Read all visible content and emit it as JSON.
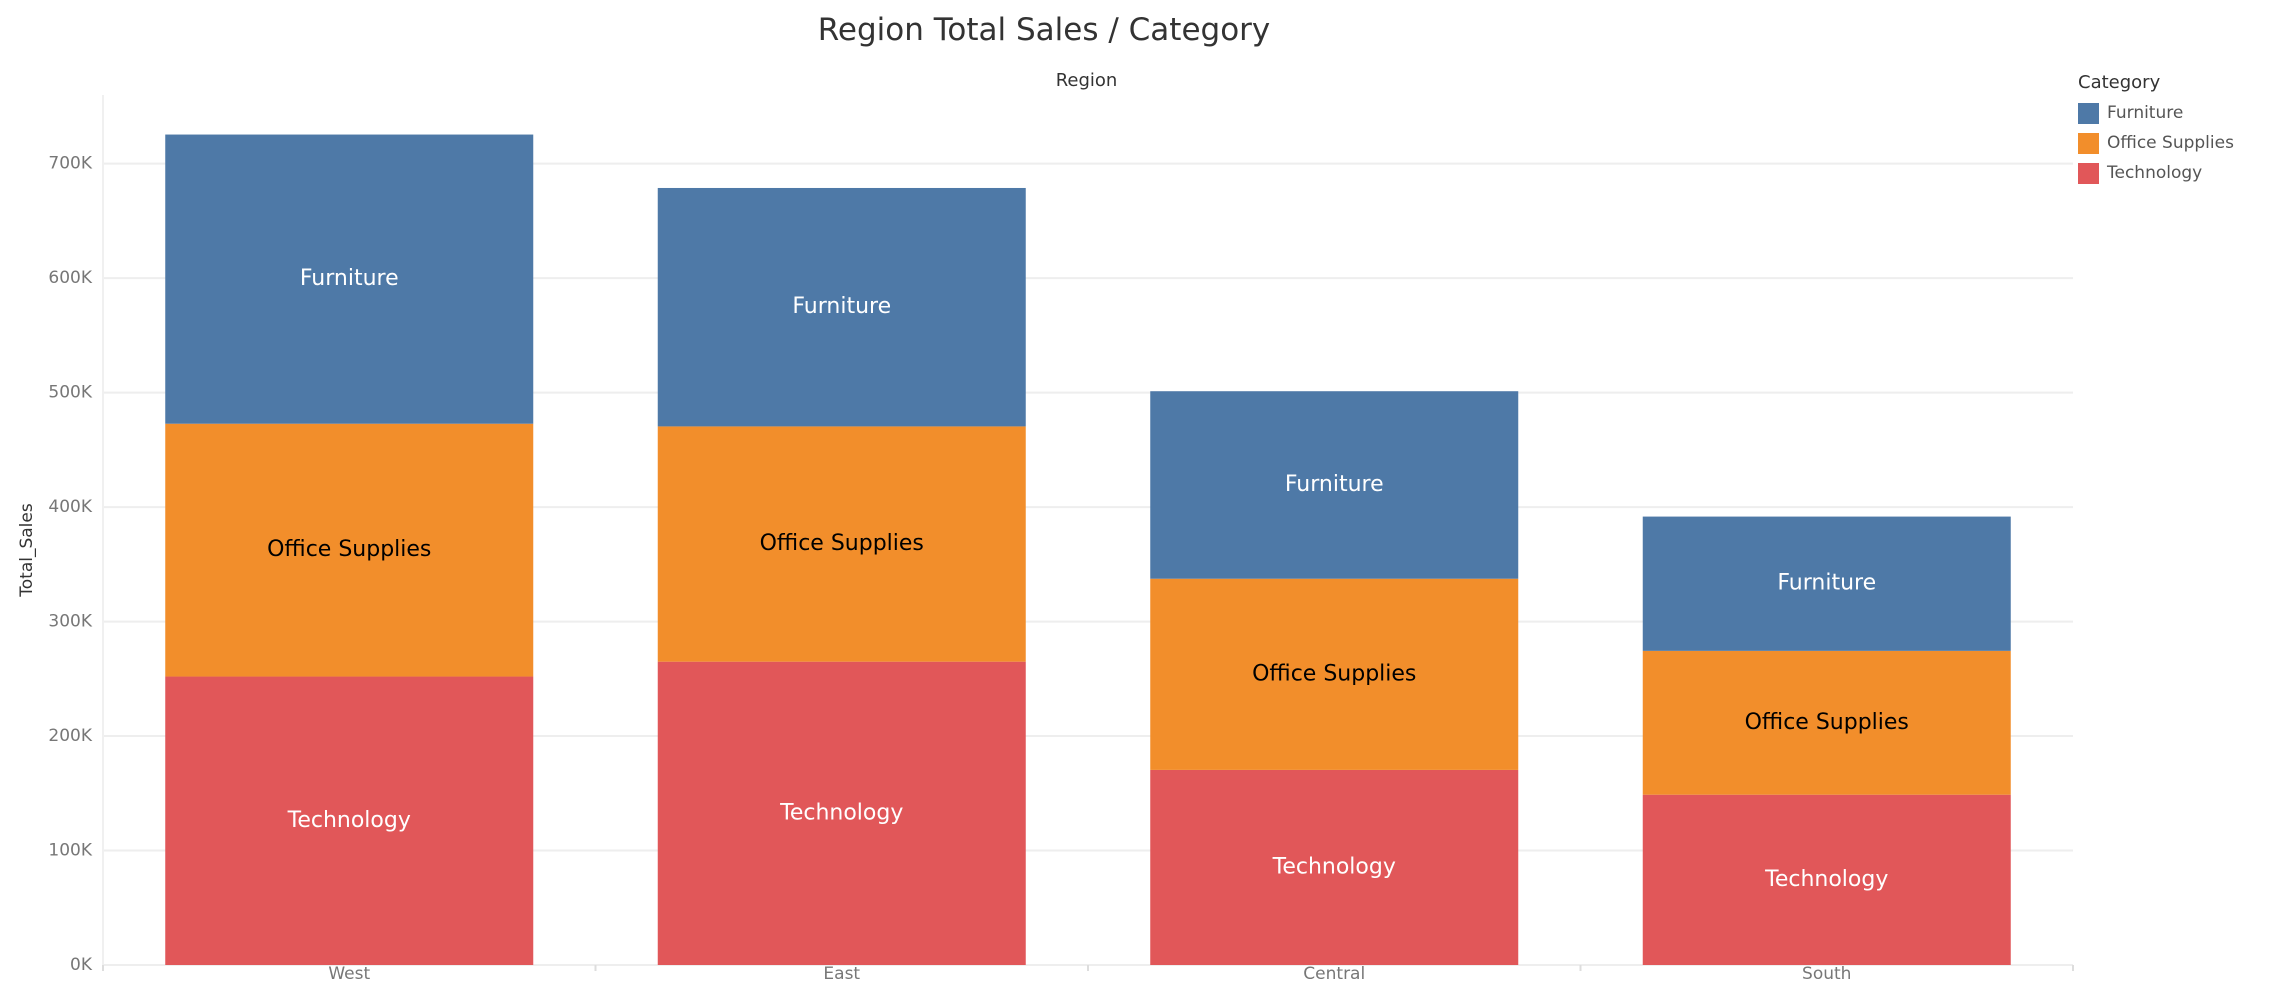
{
  "chart_data": {
    "type": "bar",
    "stacked": true,
    "title": "Region Total Sales / Category",
    "column_header": "Region",
    "xlabel": "",
    "ylabel": "Total_Sales",
    "categories": [
      "West",
      "East",
      "Central",
      "South"
    ],
    "series": [
      {
        "name": "Technology",
        "color": "#E15759",
        "values": [
          251991,
          264974,
          170416,
          148772
        ]
      },
      {
        "name": "Office Supplies",
        "color": "#F28E2B",
        "values": [
          220853,
          205516,
          167026,
          125652
        ]
      },
      {
        "name": "Furniture",
        "color": "#4E79A7",
        "values": [
          252613,
          208291,
          163797,
          117299
        ]
      }
    ],
    "ylim": [
      0,
      760000
    ],
    "yticks": [
      0,
      100000,
      200000,
      300000,
      400000,
      500000,
      600000,
      700000
    ],
    "ytick_labels": [
      "0K",
      "100K",
      "200K",
      "300K",
      "400K",
      "500K",
      "600K",
      "700K"
    ],
    "grid": true,
    "legend": {
      "title": "Category",
      "placement": "top-right",
      "items": [
        {
          "label": "Furniture",
          "color": "#4E79A7"
        },
        {
          "label": "Office Supplies",
          "color": "#F28E2B"
        },
        {
          "label": "Technology",
          "color": "#E15759"
        }
      ]
    },
    "label_colors": {
      "Technology": "#ffffff",
      "Office Supplies": "#000000",
      "Furniture": "#ffffff"
    }
  }
}
